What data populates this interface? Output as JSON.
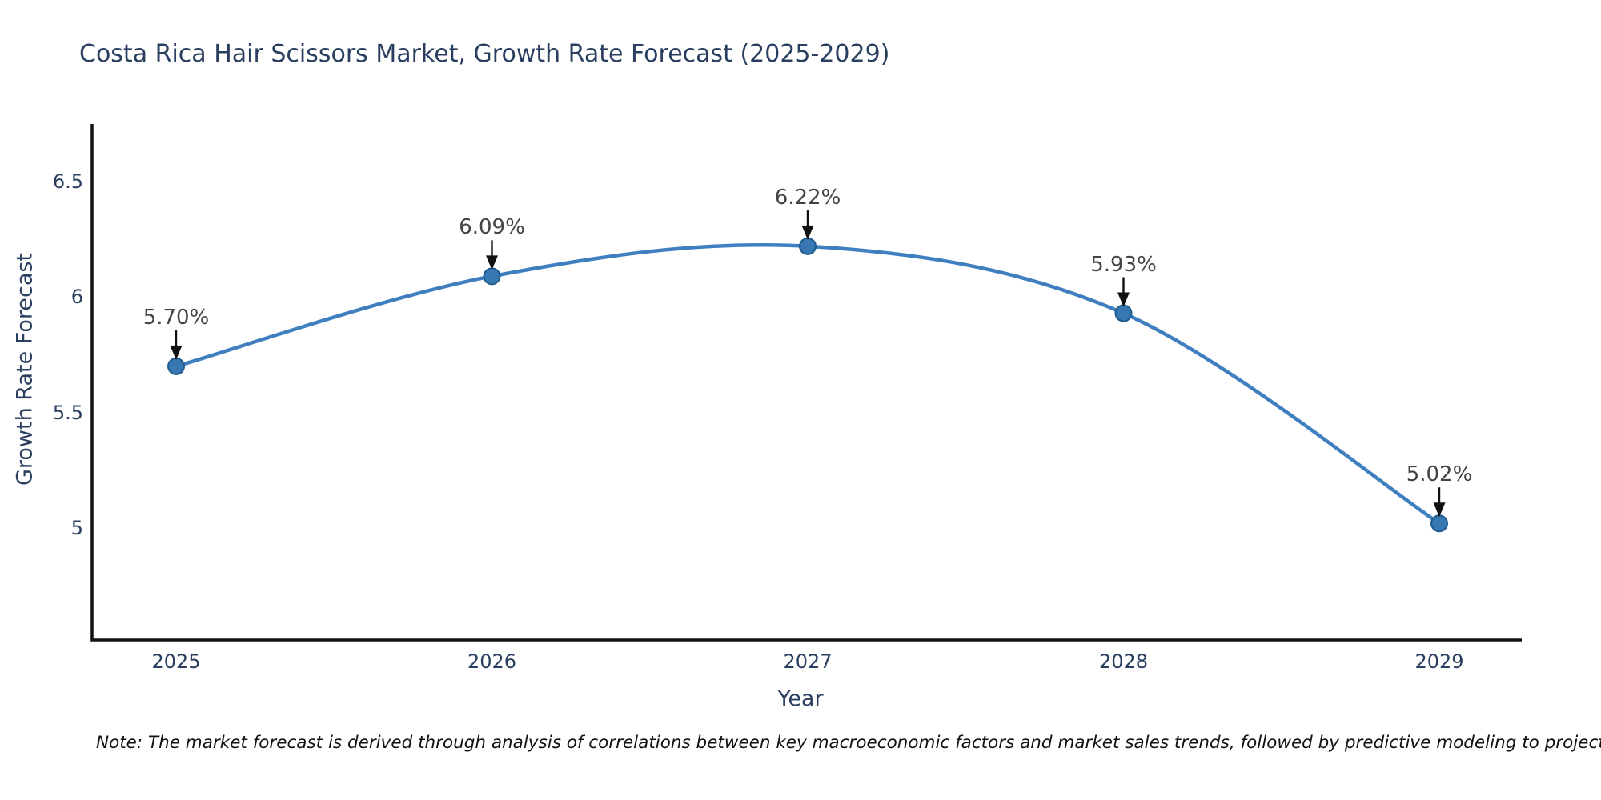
{
  "title": {
    "text": "Costa Rica Hair Scissors Market, Growth Rate Forecast (2025-2029)",
    "color": "#2a3f5f"
  },
  "note": {
    "text": "Note: The market forecast is derived through analysis of correlations between key macroeconomic factors and market sales trends, followed by predictive modeling to project future sales"
  },
  "chart_data": {
    "type": "line",
    "title": "Costa Rica Hair Scissors Market, Growth Rate Forecast (2025-2029)",
    "xlabel": "Year",
    "ylabel": "Growth Rate Forecast",
    "categories": [
      "2025",
      "2026",
      "2027",
      "2028",
      "2029"
    ],
    "series": [
      {
        "name": "Growth Rate Forecast",
        "values": [
          5.7,
          6.09,
          6.22,
          5.93,
          5.02
        ],
        "point_labels": [
          "5.70%",
          "6.09%",
          "6.22%",
          "5.93%",
          "5.02%"
        ]
      }
    ],
    "yticks": [
      "5",
      "5.5",
      "6",
      "6.5"
    ],
    "ytick_values": [
      5,
      5.5,
      6,
      6.5
    ],
    "ylim": [
      4.5,
      6.75
    ],
    "grid": false,
    "legend": false,
    "line_shape": "spline",
    "annotations_arrows": true,
    "colors": {
      "line": "#3f7fbf",
      "marker_fill": "#3777b2",
      "marker_edge": "#1f5c8d",
      "axis": "#111111",
      "arrow": "#111111",
      "tick_label": "#2a3f5f",
      "value_label": "#444444"
    }
  }
}
